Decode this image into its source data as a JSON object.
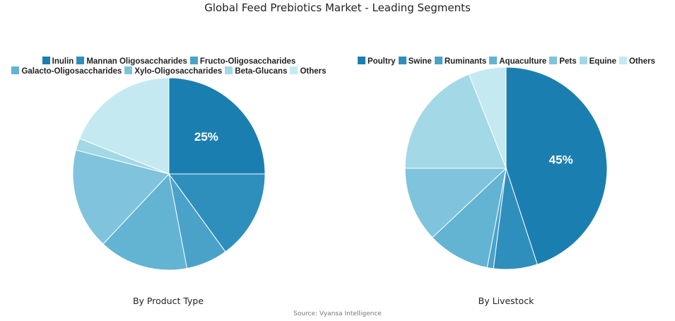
{
  "title": "Global Feed Prebiotics Market - Leading Segments",
  "source": "Source: Vyansa Intelligence",
  "chart_data": [
    {
      "type": "pie",
      "title": "By Product Type",
      "legend_position": "top",
      "categories": [
        "Inulin",
        "Mannan Oligosaccharides",
        "Fructo-Oligosaccharides",
        "Galacto-Oligosaccharides",
        "Xylo-Oligosaccharides",
        "Beta-Glucans",
        "Others"
      ],
      "values": [
        25,
        15,
        7,
        15,
        17,
        2,
        19
      ],
      "data_labels": [
        "25%",
        "",
        "",
        "",
        "",
        "",
        ""
      ],
      "colors": [
        "#1b7eb0",
        "#2e8fbc",
        "#4aa2c9",
        "#63b3d3",
        "#7fc4dc",
        "#a3d8e6",
        "#c5e9f0"
      ]
    },
    {
      "type": "pie",
      "title": "By Livestock",
      "legend_position": "top",
      "categories": [
        "Poultry",
        "Swine",
        "Ruminants",
        "Aquaculture",
        "Pets",
        "Equine",
        "Others"
      ],
      "values": [
        45,
        7,
        1,
        10,
        12,
        19,
        6
      ],
      "data_labels": [
        "45%",
        "",
        "",
        "",
        "",
        "",
        ""
      ],
      "colors": [
        "#1b7eb0",
        "#2e8fbc",
        "#4aa2c9",
        "#63b3d3",
        "#7fc4dc",
        "#a3d8e6",
        "#c5e9f0"
      ]
    }
  ]
}
